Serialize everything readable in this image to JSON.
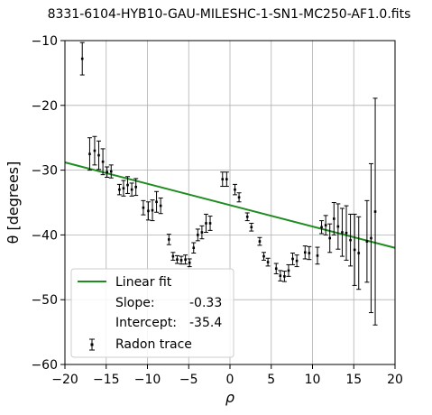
{
  "chart_data": {
    "type": "scatter",
    "title": "8331-6104-HYB10-GAU-MILESHC-1-SN1-MC250-AF1.0.fits",
    "xlabel": "ρ",
    "ylabel": "θ [degrees]",
    "xlim": [
      -20,
      20
    ],
    "ylim": [
      -60,
      -10
    ],
    "xticks": [
      "−20",
      "−15",
      "−10",
      "−5",
      "0",
      "5",
      "10",
      "15",
      "20"
    ],
    "yticks": [
      "−60",
      "−50",
      "−40",
      "−30",
      "−20",
      "−10"
    ],
    "grid": true,
    "legend_position": "lower-left",
    "colors": {
      "fit": "#1e8c1e",
      "points": "#000000",
      "grid": "#b0b0b0"
    },
    "fit": {
      "name": "Linear fit",
      "slope": -0.33,
      "intercept": -35.4,
      "slope_label": "Slope:",
      "slope_value": "-0.33",
      "intercept_label": "Intercept:",
      "intercept_value": "-35.4"
    },
    "points_name": "Radon trace",
    "points": [
      {
        "x": -17.9,
        "y": -12.8,
        "err": 2.5
      },
      {
        "x": -17.0,
        "y": -27.5,
        "err": 2.5
      },
      {
        "x": -16.4,
        "y": -27.0,
        "err": 2.2
      },
      {
        "x": -15.9,
        "y": -27.7,
        "err": 2.2
      },
      {
        "x": -15.4,
        "y": -28.7,
        "err": 2.0
      },
      {
        "x": -14.9,
        "y": -30.3,
        "err": 0.8
      },
      {
        "x": -14.4,
        "y": -30.2,
        "err": 1.0
      },
      {
        "x": -13.4,
        "y": -33.0,
        "err": 0.8
      },
      {
        "x": -12.9,
        "y": -32.8,
        "err": 1.2
      },
      {
        "x": -12.4,
        "y": -32.3,
        "err": 1.3
      },
      {
        "x": -11.9,
        "y": -33.0,
        "err": 1.0
      },
      {
        "x": -11.4,
        "y": -32.6,
        "err": 1.3
      },
      {
        "x": -10.5,
        "y": -35.8,
        "err": 1.1
      },
      {
        "x": -9.9,
        "y": -36.3,
        "err": 1.4
      },
      {
        "x": -9.4,
        "y": -36.2,
        "err": 1.6
      },
      {
        "x": -8.9,
        "y": -34.9,
        "err": 1.6
      },
      {
        "x": -8.4,
        "y": -35.5,
        "err": 1.2
      },
      {
        "x": -7.4,
        "y": -40.7,
        "err": 0.8
      },
      {
        "x": -6.9,
        "y": -43.3,
        "err": 0.6
      },
      {
        "x": -6.4,
        "y": -43.8,
        "err": 0.6
      },
      {
        "x": -5.9,
        "y": -43.9,
        "err": 0.6
      },
      {
        "x": -5.4,
        "y": -43.8,
        "err": 0.7
      },
      {
        "x": -4.9,
        "y": -44.3,
        "err": 0.6
      },
      {
        "x": -4.4,
        "y": -42.0,
        "err": 0.8
      },
      {
        "x": -3.9,
        "y": -40.0,
        "err": 0.9
      },
      {
        "x": -3.4,
        "y": -39.6,
        "err": 1.0
      },
      {
        "x": -2.9,
        "y": -38.2,
        "err": 1.4
      },
      {
        "x": -2.4,
        "y": -38.2,
        "err": 1.1
      },
      {
        "x": -0.9,
        "y": -31.4,
        "err": 1.1
      },
      {
        "x": -0.4,
        "y": -31.4,
        "err": 1.1
      },
      {
        "x": 0.6,
        "y": -33.0,
        "err": 0.8
      },
      {
        "x": 1.1,
        "y": -34.2,
        "err": 0.7
      },
      {
        "x": 2.1,
        "y": -37.2,
        "err": 0.6
      },
      {
        "x": 2.6,
        "y": -38.8,
        "err": 0.6
      },
      {
        "x": 3.6,
        "y": -41.0,
        "err": 0.6
      },
      {
        "x": 4.1,
        "y": -43.3,
        "err": 0.6
      },
      {
        "x": 4.6,
        "y": -44.2,
        "err": 0.6
      },
      {
        "x": 5.6,
        "y": -45.2,
        "err": 0.8
      },
      {
        "x": 6.1,
        "y": -46.3,
        "err": 0.8
      },
      {
        "x": 6.6,
        "y": -46.4,
        "err": 0.8
      },
      {
        "x": 7.1,
        "y": -45.5,
        "err": 0.9
      },
      {
        "x": 7.6,
        "y": -43.7,
        "err": 0.9
      },
      {
        "x": 8.1,
        "y": -44.0,
        "err": 0.9
      },
      {
        "x": 9.1,
        "y": -42.7,
        "err": 1.0
      },
      {
        "x": 9.6,
        "y": -42.8,
        "err": 1.0
      },
      {
        "x": 10.6,
        "y": -43.2,
        "err": 1.3
      },
      {
        "x": 11.1,
        "y": -38.8,
        "err": 1.0
      },
      {
        "x": 11.6,
        "y": -38.5,
        "err": 1.5
      },
      {
        "x": 12.1,
        "y": -40.5,
        "err": 2.2
      },
      {
        "x": 12.6,
        "y": -37.5,
        "err": 2.5
      },
      {
        "x": 13.1,
        "y": -38.7,
        "err": 3.5
      },
      {
        "x": 13.6,
        "y": -39.6,
        "err": 3.7
      },
      {
        "x": 14.1,
        "y": -39.7,
        "err": 4.2
      },
      {
        "x": 14.6,
        "y": -40.8,
        "err": 4.0
      },
      {
        "x": 15.1,
        "y": -42.3,
        "err": 5.5
      },
      {
        "x": 15.6,
        "y": -42.8,
        "err": 5.6
      },
      {
        "x": 16.6,
        "y": -41.0,
        "err": 6.3
      },
      {
        "x": 17.1,
        "y": -40.5,
        "err": 11.5
      },
      {
        "x": 17.6,
        "y": -36.4,
        "err": 17.5
      }
    ]
  }
}
